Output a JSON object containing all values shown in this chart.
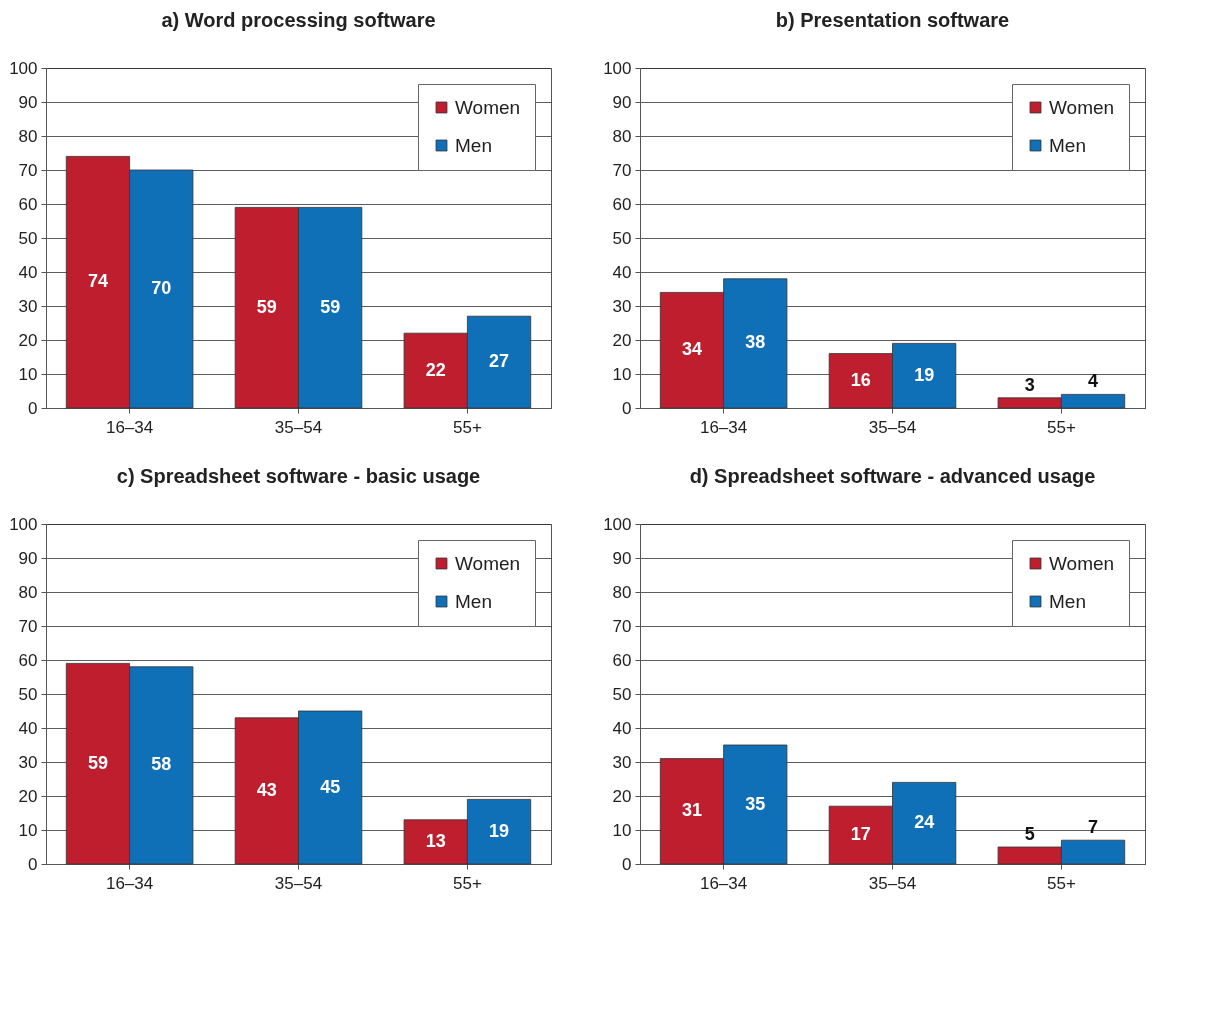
{
  "chart_data": [
    {
      "type": "bar",
      "title": "a) Word processing software",
      "categories": [
        "16–34",
        "35–54",
        "55+"
      ],
      "series": [
        {
          "name": "Women",
          "color": "#be1e2d",
          "values": [
            74,
            59,
            22
          ]
        },
        {
          "name": "Men",
          "color": "#0f6fb7",
          "values": [
            70,
            59,
            27
          ]
        }
      ],
      "ylim": [
        0,
        100
      ],
      "yticks": [
        0,
        10,
        20,
        30,
        40,
        50,
        60,
        70,
        80,
        90,
        100
      ],
      "grid": "y",
      "legend": "top right",
      "data_labels": true
    },
    {
      "type": "bar",
      "title": "b) Presentation software",
      "categories": [
        "16–34",
        "35–54",
        "55+"
      ],
      "series": [
        {
          "name": "Women",
          "color": "#be1e2d",
          "values": [
            34,
            16,
            3
          ]
        },
        {
          "name": "Men",
          "color": "#0f6fb7",
          "values": [
            38,
            19,
            4
          ]
        }
      ],
      "ylim": [
        0,
        100
      ],
      "yticks": [
        0,
        10,
        20,
        30,
        40,
        50,
        60,
        70,
        80,
        90,
        100
      ],
      "grid": "y",
      "legend": "top right",
      "data_labels": true
    },
    {
      "type": "bar",
      "title": "c) Spreadsheet software - basic usage",
      "categories": [
        "16–34",
        "35–54",
        "55+"
      ],
      "series": [
        {
          "name": "Women",
          "color": "#be1e2d",
          "values": [
            59,
            43,
            13
          ]
        },
        {
          "name": "Men",
          "color": "#0f6fb7",
          "values": [
            58,
            45,
            19
          ]
        }
      ],
      "ylim": [
        0,
        100
      ],
      "yticks": [
        0,
        10,
        20,
        30,
        40,
        50,
        60,
        70,
        80,
        90,
        100
      ],
      "grid": "y",
      "legend": "top right",
      "data_labels": true
    },
    {
      "type": "bar",
      "title": "d) Spreadsheet software - advanced usage",
      "categories": [
        "16–34",
        "35–54",
        "55+"
      ],
      "series": [
        {
          "name": "Women",
          "color": "#be1e2d",
          "values": [
            31,
            17,
            5
          ]
        },
        {
          "name": "Men",
          "color": "#0f6fb7",
          "values": [
            35,
            24,
            7
          ]
        }
      ],
      "ylim": [
        0,
        100
      ],
      "yticks": [
        0,
        10,
        20,
        30,
        40,
        50,
        60,
        70,
        80,
        90,
        100
      ],
      "grid": "y",
      "legend": "top right",
      "data_labels": true
    }
  ]
}
